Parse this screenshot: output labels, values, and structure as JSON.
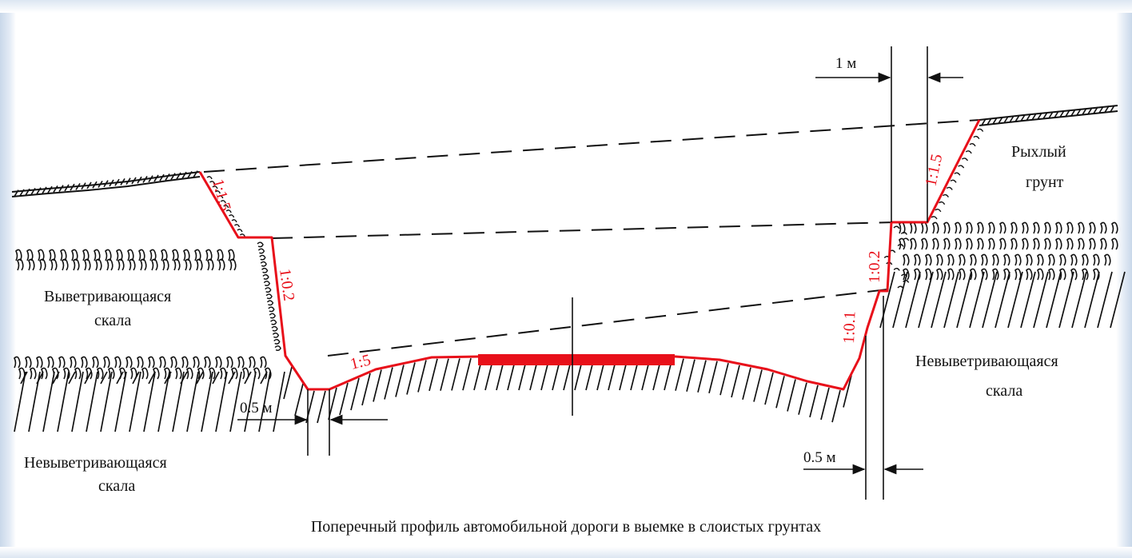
{
  "caption": "Поперечный профиль автомобильной дороги в выемке в слоистых грунтах",
  "soil_labels": {
    "weathering_rock_l1": "Выветривающаяся",
    "weathering_rock_l2": "скала",
    "nonweathering_left_l1": "Невыветривающаяся",
    "nonweathering_left_l2": "скала",
    "nonweathering_right_l1": "Невыветривающаяся",
    "nonweathering_right_l2": "скала",
    "loose_soil_l1": "Рыхлый",
    "loose_soil_l2": "грунт"
  },
  "slope_labels": {
    "left_upper": "1:1.5",
    "left_middle": "1:0.2",
    "left_bottom": "1:5",
    "right_upper": "1:1.5",
    "right_middle": "1:0.2",
    "right_lower": "1:0.1"
  },
  "dimensions": {
    "top_right": "1 м",
    "bottom_left": "0.5 м",
    "bottom_right": "0.5 м"
  },
  "colors": {
    "profile": "#e8101a",
    "lines": "#111111",
    "background": "#ffffff"
  }
}
